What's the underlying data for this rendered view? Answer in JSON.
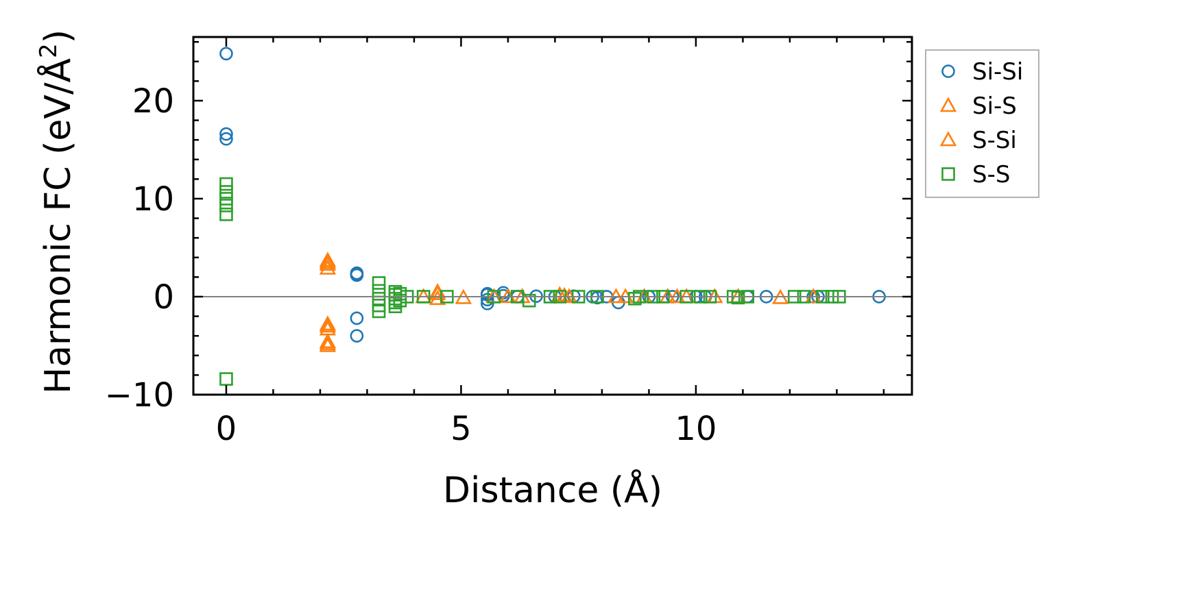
{
  "chart_data": {
    "type": "scatter",
    "xlabel": "Distance (Å)",
    "ylabel_main": "Harmonic FC (eV/Å",
    "ylabel_sup": "2",
    "ylabel_end": ")",
    "xlim": [
      -0.7,
      14.6
    ],
    "ylim": [
      -10,
      26.5
    ],
    "xticks": [
      0,
      5,
      10
    ],
    "xtick_labels": [
      "0",
      "5",
      "10"
    ],
    "yticks": [
      -10,
      0,
      10,
      20
    ],
    "ytick_labels": [
      "−10",
      "0",
      "10",
      "20"
    ],
    "zero_line": true,
    "grid": false,
    "legend_position": "outside-right",
    "series": [
      {
        "name": "Si-Si",
        "marker": "circle",
        "color": "#1f77b4",
        "points": [
          [
            0,
            24.8
          ],
          [
            0,
            16.6
          ],
          [
            0,
            16.1
          ],
          [
            2.78,
            2.4
          ],
          [
            2.78,
            2.2
          ],
          [
            2.78,
            2.3
          ],
          [
            2.78,
            -2.2
          ],
          [
            2.78,
            -4.0
          ],
          [
            5.56,
            0.3
          ],
          [
            5.56,
            0.2
          ],
          [
            5.56,
            -0.7
          ],
          [
            5.56,
            -0.3
          ],
          [
            5.9,
            0.4
          ],
          [
            5.9,
            0.1
          ],
          [
            6.2,
            0.0
          ],
          [
            6.6,
            0.05
          ],
          [
            7.0,
            0.0
          ],
          [
            7.4,
            0.05
          ],
          [
            7.8,
            0.0
          ],
          [
            7.9,
            -0.1
          ],
          [
            8.1,
            0.0
          ],
          [
            8.35,
            -0.6
          ],
          [
            9.0,
            0.0
          ],
          [
            9.5,
            0.0
          ],
          [
            10.0,
            0.0
          ],
          [
            10.2,
            0.0
          ],
          [
            11.1,
            0.0
          ],
          [
            11.5,
            0.0
          ],
          [
            12.5,
            0.0
          ],
          [
            12.6,
            0.0
          ],
          [
            13.9,
            0.0
          ]
        ]
      },
      {
        "name": "Si-S",
        "marker": "triangle",
        "color": "#ff7f0e",
        "points": [
          [
            2.16,
            3.7
          ],
          [
            2.16,
            3.3
          ],
          [
            2.16,
            2.9
          ],
          [
            2.16,
            -2.8
          ],
          [
            2.16,
            -3.3
          ],
          [
            2.16,
            -4.6
          ],
          [
            2.16,
            -5.0
          ],
          [
            4.2,
            0.0
          ],
          [
            4.5,
            0.5
          ],
          [
            4.5,
            -0.2
          ],
          [
            5.05,
            -0.1
          ],
          [
            5.7,
            0.0
          ],
          [
            6.0,
            0.0
          ],
          [
            6.3,
            0.0
          ],
          [
            7.1,
            0.2
          ],
          [
            7.3,
            0.0
          ],
          [
            8.3,
            0.0
          ],
          [
            8.5,
            0.0
          ],
          [
            8.9,
            0.0
          ],
          [
            9.4,
            0.0
          ],
          [
            9.8,
            0.0
          ],
          [
            10.4,
            0.0
          ],
          [
            10.9,
            0.0
          ],
          [
            11.8,
            -0.1
          ],
          [
            12.5,
            0.0
          ]
        ]
      },
      {
        "name": "S-Si",
        "marker": "triangle",
        "color": "#ff7f0e",
        "points": [
          [
            2.16,
            3.5
          ],
          [
            2.16,
            -3.0
          ],
          [
            2.16,
            -4.8
          ],
          [
            4.5,
            0.3
          ],
          [
            7.2,
            0.1
          ],
          [
            9.6,
            0.0
          ]
        ]
      },
      {
        "name": "S-S",
        "marker": "square",
        "color": "#2ca02c",
        "points": [
          [
            0,
            11.5
          ],
          [
            0,
            10.7
          ],
          [
            0,
            10.0
          ],
          [
            0,
            9.3
          ],
          [
            0,
            8.4
          ],
          [
            0,
            -8.4
          ],
          [
            3.25,
            1.4
          ],
          [
            3.25,
            0.6
          ],
          [
            3.25,
            -0.2
          ],
          [
            3.25,
            -0.9
          ],
          [
            3.25,
            -1.5
          ],
          [
            3.6,
            0.5
          ],
          [
            3.6,
            0.2
          ],
          [
            3.6,
            -0.2
          ],
          [
            3.6,
            -0.6
          ],
          [
            3.6,
            -1.0
          ],
          [
            3.7,
            0.3
          ],
          [
            3.7,
            -0.4
          ],
          [
            3.85,
            0.0
          ],
          [
            4.2,
            0.0
          ],
          [
            4.7,
            0.0
          ],
          [
            5.7,
            0.0
          ],
          [
            6.2,
            0.0
          ],
          [
            6.45,
            -0.4
          ],
          [
            6.9,
            0.0
          ],
          [
            7.1,
            0.0
          ],
          [
            7.5,
            0.0
          ],
          [
            7.9,
            0.0
          ],
          [
            8.7,
            -0.2
          ],
          [
            8.8,
            0.0
          ],
          [
            9.1,
            0.0
          ],
          [
            9.3,
            0.0
          ],
          [
            9.8,
            0.0
          ],
          [
            10.1,
            0.0
          ],
          [
            10.3,
            0.0
          ],
          [
            10.8,
            0.0
          ],
          [
            10.9,
            -0.1
          ],
          [
            11.1,
            0.0
          ],
          [
            12.1,
            0.0
          ],
          [
            12.3,
            0.0
          ],
          [
            12.7,
            0.0
          ],
          [
            12.9,
            0.0
          ],
          [
            13.05,
            0.0
          ]
        ]
      }
    ]
  }
}
